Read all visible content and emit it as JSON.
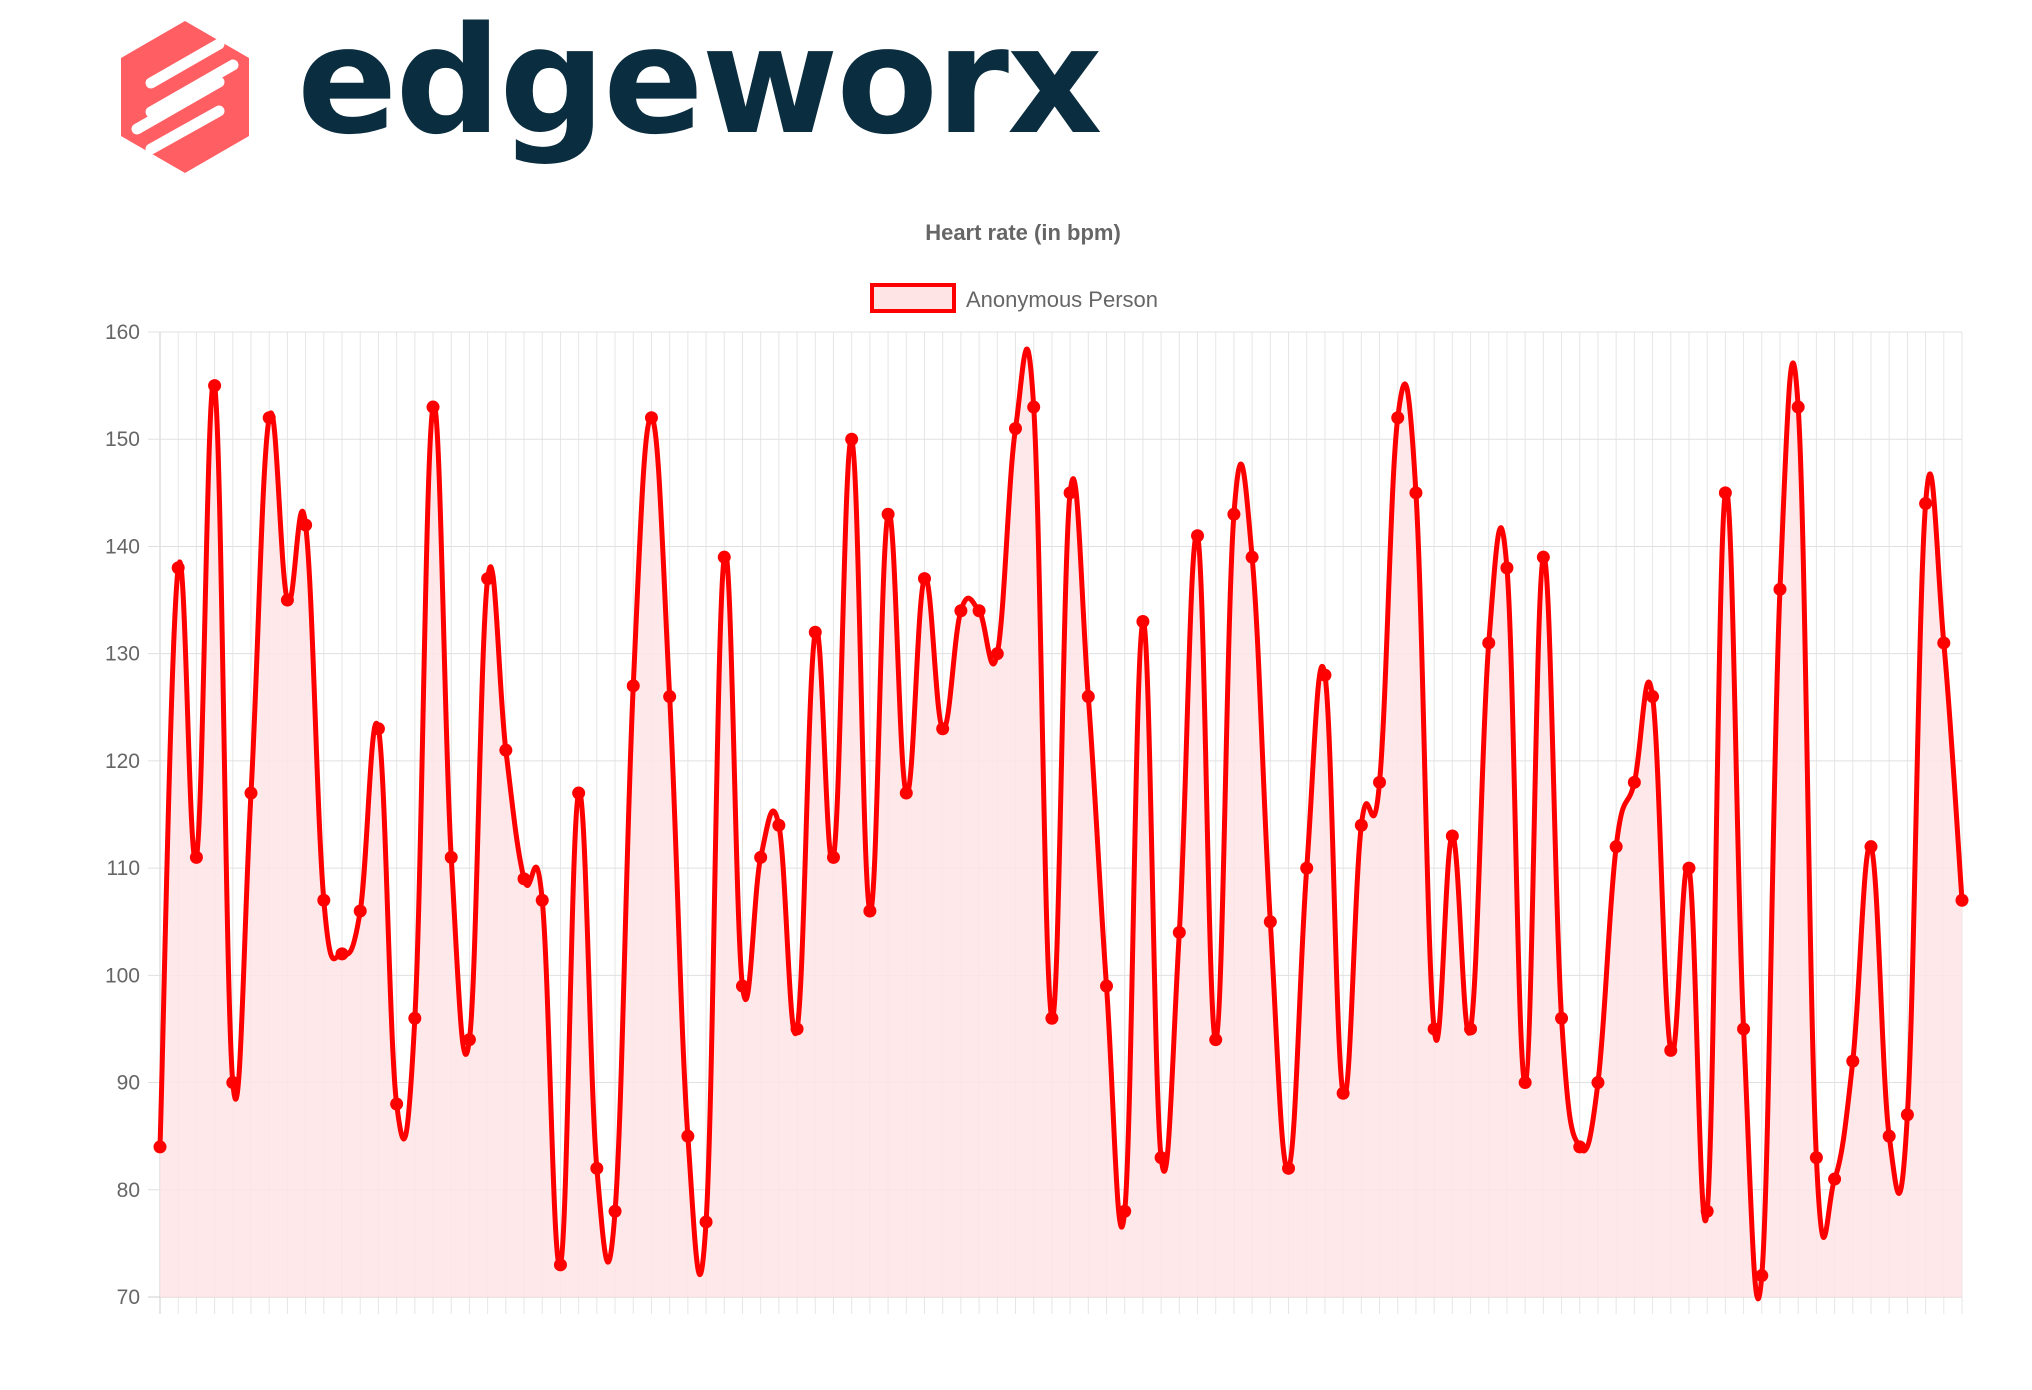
{
  "brand": {
    "name": "edgeworx",
    "mark_color": "#ff5e63",
    "text_color": "#0a2d3f"
  },
  "chart_data": {
    "type": "line",
    "title": "Heart rate (in bpm)",
    "xlabel": "",
    "ylabel": "",
    "ylim": [
      70,
      160
    ],
    "yticks": [
      70,
      80,
      90,
      100,
      110,
      120,
      130,
      140,
      150,
      160
    ],
    "grid": true,
    "legend_position": "top-center",
    "series": [
      {
        "name": "Anonymous Person",
        "line_color": "#ff0000",
        "fill_color": "#ffe4e6",
        "values": [
          84,
          138,
          111,
          155,
          90,
          117,
          152,
          135,
          142,
          107,
          102,
          106,
          123,
          88,
          96,
          153,
          111,
          94,
          137,
          121,
          109,
          107,
          73,
          117,
          82,
          78,
          127,
          152,
          126,
          85,
          77,
          139,
          99,
          111,
          114,
          95,
          132,
          111,
          150,
          106,
          143,
          117,
          137,
          123,
          134,
          134,
          130,
          151,
          153,
          96,
          145,
          126,
          99,
          78,
          133,
          83,
          104,
          141,
          94,
          143,
          139,
          105,
          82,
          110,
          128,
          89,
          114,
          118,
          152,
          145,
          95,
          113,
          95,
          131,
          138,
          90,
          139,
          96,
          84,
          90,
          112,
          118,
          126,
          93,
          110,
          78,
          145,
          95,
          72,
          136,
          153,
          83,
          81,
          92,
          112,
          85,
          87,
          144,
          131,
          107
        ]
      }
    ]
  }
}
